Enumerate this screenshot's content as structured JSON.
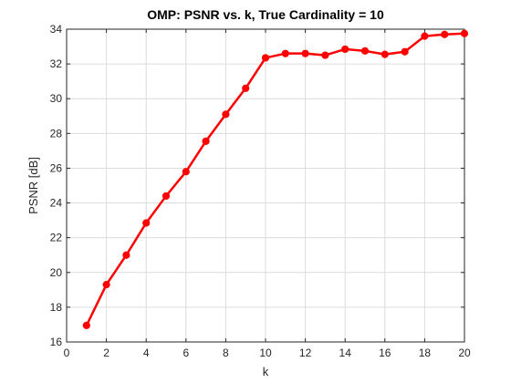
{
  "chart_data": {
    "type": "line",
    "title": "OMP: PSNR vs. k, True Cardinality = 10",
    "xlabel": "k",
    "ylabel": "PSNR [dB]",
    "xlim": [
      0,
      20
    ],
    "ylim": [
      16,
      34
    ],
    "xticks": [
      0,
      2,
      4,
      6,
      8,
      10,
      12,
      14,
      16,
      18,
      20
    ],
    "yticks": [
      16,
      18,
      20,
      22,
      24,
      26,
      28,
      30,
      32,
      34
    ],
    "grid": true,
    "series": [
      {
        "color": "#ff0000",
        "marker": "circle",
        "x": [
          1,
          2,
          3,
          4,
          5,
          6,
          7,
          8,
          9,
          10,
          11,
          12,
          13,
          14,
          15,
          16,
          17,
          18,
          19,
          20
        ],
        "y": [
          16.95,
          19.3,
          21.0,
          22.85,
          24.4,
          25.8,
          27.55,
          29.1,
          30.6,
          32.35,
          32.6,
          32.6,
          32.5,
          32.85,
          32.75,
          32.55,
          32.7,
          33.6,
          33.7,
          33.75
        ]
      }
    ]
  }
}
